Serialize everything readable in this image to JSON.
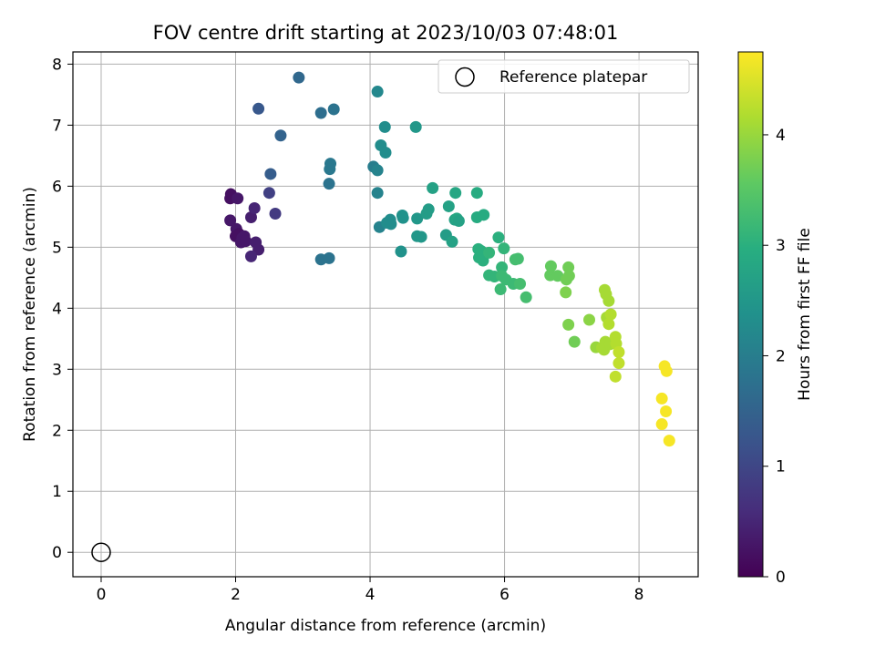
{
  "chart_data": {
    "type": "scatter",
    "title": "FOV centre drift starting at 2023/10/03 07:48:01",
    "xlabel": "Angular distance from reference (arcmin)",
    "ylabel": "Rotation from reference (arcmin)",
    "xlim": [
      -0.42,
      8.88
    ],
    "ylim": [
      -0.4,
      8.2
    ],
    "xticks": [
      0,
      2,
      4,
      6,
      8
    ],
    "yticks": [
      0,
      1,
      2,
      3,
      4,
      5,
      6,
      7,
      8
    ],
    "grid": true,
    "legend": {
      "placement": "top-right",
      "entries": [
        {
          "label": "Reference platepar",
          "marker": "open-circle"
        }
      ]
    },
    "reference_point": {
      "x": 0,
      "y": 0
    },
    "colorbar": {
      "label": "Hours from first FF file",
      "colormap": "viridis",
      "range": [
        0,
        4.75
      ],
      "ticks": [
        0,
        1,
        2,
        3,
        4
      ]
    },
    "points": [
      {
        "x": 1.93,
        "y": 5.87,
        "t": 0.2
      },
      {
        "x": 1.92,
        "y": 5.8,
        "t": 0.2
      },
      {
        "x": 2.03,
        "y": 5.8,
        "t": 0.3
      },
      {
        "x": 1.92,
        "y": 5.44,
        "t": 0.3
      },
      {
        "x": 2.01,
        "y": 5.3,
        "t": 0.3
      },
      {
        "x": 2.05,
        "y": 5.22,
        "t": 0.2
      },
      {
        "x": 2.0,
        "y": 5.18,
        "t": 0.2
      },
      {
        "x": 2.1,
        "y": 5.15,
        "t": 0.3
      },
      {
        "x": 2.13,
        "y": 5.18,
        "t": 0.3
      },
      {
        "x": 2.08,
        "y": 5.08,
        "t": 0.3
      },
      {
        "x": 2.15,
        "y": 5.1,
        "t": 0.3
      },
      {
        "x": 2.3,
        "y": 5.08,
        "t": 0.4
      },
      {
        "x": 2.34,
        "y": 4.96,
        "t": 0.4
      },
      {
        "x": 2.23,
        "y": 4.85,
        "t": 0.5
      },
      {
        "x": 2.23,
        "y": 5.49,
        "t": 0.4
      },
      {
        "x": 2.28,
        "y": 5.64,
        "t": 0.5
      },
      {
        "x": 2.5,
        "y": 5.89,
        "t": 0.9
      },
      {
        "x": 2.59,
        "y": 5.55,
        "t": 0.8
      },
      {
        "x": 2.52,
        "y": 6.2,
        "t": 1.4
      },
      {
        "x": 2.34,
        "y": 7.27,
        "t": 1.3
      },
      {
        "x": 2.67,
        "y": 6.83,
        "t": 1.5
      },
      {
        "x": 2.94,
        "y": 7.78,
        "t": 1.6
      },
      {
        "x": 3.27,
        "y": 7.2,
        "t": 1.7
      },
      {
        "x": 3.46,
        "y": 7.26,
        "t": 1.8
      },
      {
        "x": 3.41,
        "y": 6.37,
        "t": 1.9
      },
      {
        "x": 3.4,
        "y": 6.28,
        "t": 1.9
      },
      {
        "x": 3.39,
        "y": 6.04,
        "t": 1.8
      },
      {
        "x": 3.27,
        "y": 4.8,
        "t": 1.8
      },
      {
        "x": 3.39,
        "y": 4.82,
        "t": 1.8
      },
      {
        "x": 4.05,
        "y": 6.32,
        "t": 2.0
      },
      {
        "x": 4.11,
        "y": 6.26,
        "t": 2.1
      },
      {
        "x": 4.11,
        "y": 5.89,
        "t": 2.1
      },
      {
        "x": 4.11,
        "y": 7.55,
        "t": 2.2
      },
      {
        "x": 4.22,
        "y": 6.97,
        "t": 2.3
      },
      {
        "x": 4.16,
        "y": 6.67,
        "t": 2.3
      },
      {
        "x": 4.23,
        "y": 6.55,
        "t": 2.3
      },
      {
        "x": 4.14,
        "y": 5.33,
        "t": 2.1
      },
      {
        "x": 4.25,
        "y": 5.4,
        "t": 2.3
      },
      {
        "x": 4.3,
        "y": 5.45,
        "t": 2.3
      },
      {
        "x": 4.31,
        "y": 5.38,
        "t": 2.3
      },
      {
        "x": 4.48,
        "y": 5.52,
        "t": 2.4
      },
      {
        "x": 4.49,
        "y": 5.48,
        "t": 2.4
      },
      {
        "x": 4.68,
        "y": 6.97,
        "t": 2.5
      },
      {
        "x": 4.46,
        "y": 4.93,
        "t": 2.4
      },
      {
        "x": 4.7,
        "y": 5.47,
        "t": 2.5
      },
      {
        "x": 4.7,
        "y": 5.18,
        "t": 2.5
      },
      {
        "x": 4.76,
        "y": 5.17,
        "t": 2.5
      },
      {
        "x": 4.84,
        "y": 5.55,
        "t": 2.6
      },
      {
        "x": 4.87,
        "y": 5.62,
        "t": 2.6
      },
      {
        "x": 4.93,
        "y": 5.97,
        "t": 2.7
      },
      {
        "x": 5.13,
        "y": 5.2,
        "t": 2.6
      },
      {
        "x": 5.17,
        "y": 5.67,
        "t": 2.7
      },
      {
        "x": 5.22,
        "y": 5.09,
        "t": 2.7
      },
      {
        "x": 5.27,
        "y": 5.89,
        "t": 2.8
      },
      {
        "x": 5.26,
        "y": 5.45,
        "t": 2.7
      },
      {
        "x": 5.29,
        "y": 5.47,
        "t": 2.8
      },
      {
        "x": 5.32,
        "y": 5.43,
        "t": 2.7
      },
      {
        "x": 5.59,
        "y": 5.89,
        "t": 2.9
      },
      {
        "x": 5.59,
        "y": 5.49,
        "t": 2.9
      },
      {
        "x": 5.69,
        "y": 5.53,
        "t": 2.9
      },
      {
        "x": 5.61,
        "y": 4.97,
        "t": 3.0
      },
      {
        "x": 5.62,
        "y": 4.83,
        "t": 3.0
      },
      {
        "x": 5.65,
        "y": 4.94,
        "t": 3.0
      },
      {
        "x": 5.68,
        "y": 4.78,
        "t": 3.0
      },
      {
        "x": 5.77,
        "y": 4.91,
        "t": 3.1
      },
      {
        "x": 5.77,
        "y": 4.54,
        "t": 3.1
      },
      {
        "x": 5.85,
        "y": 4.52,
        "t": 3.1
      },
      {
        "x": 5.91,
        "y": 5.16,
        "t": 3.0
      },
      {
        "x": 5.99,
        "y": 4.98,
        "t": 3.1
      },
      {
        "x": 5.96,
        "y": 4.67,
        "t": 3.1
      },
      {
        "x": 5.96,
        "y": 4.53,
        "t": 3.2
      },
      {
        "x": 5.94,
        "y": 4.31,
        "t": 3.2
      },
      {
        "x": 6.02,
        "y": 4.47,
        "t": 3.2
      },
      {
        "x": 6.13,
        "y": 4.4,
        "t": 3.2
      },
      {
        "x": 6.16,
        "y": 4.8,
        "t": 3.3
      },
      {
        "x": 6.2,
        "y": 4.81,
        "t": 3.3
      },
      {
        "x": 6.23,
        "y": 4.4,
        "t": 3.3
      },
      {
        "x": 6.32,
        "y": 4.18,
        "t": 3.3
      },
      {
        "x": 6.69,
        "y": 4.69,
        "t": 3.6
      },
      {
        "x": 6.68,
        "y": 4.54,
        "t": 3.6
      },
      {
        "x": 6.79,
        "y": 4.53,
        "t": 3.6
      },
      {
        "x": 6.92,
        "y": 4.47,
        "t": 3.7
      },
      {
        "x": 6.95,
        "y": 4.67,
        "t": 3.7
      },
      {
        "x": 6.96,
        "y": 4.53,
        "t": 3.7
      },
      {
        "x": 6.91,
        "y": 4.26,
        "t": 3.8
      },
      {
        "x": 6.95,
        "y": 3.73,
        "t": 3.8
      },
      {
        "x": 7.04,
        "y": 3.45,
        "t": 3.7
      },
      {
        "x": 7.26,
        "y": 3.81,
        "t": 3.9
      },
      {
        "x": 7.36,
        "y": 3.36,
        "t": 4.0
      },
      {
        "x": 7.45,
        "y": 3.35,
        "t": 4.1
      },
      {
        "x": 7.48,
        "y": 3.32,
        "t": 4.1
      },
      {
        "x": 7.5,
        "y": 3.45,
        "t": 4.1
      },
      {
        "x": 7.57,
        "y": 3.41,
        "t": 4.1
      },
      {
        "x": 7.49,
        "y": 4.3,
        "t": 4.1
      },
      {
        "x": 7.51,
        "y": 4.23,
        "t": 4.1
      },
      {
        "x": 7.55,
        "y": 4.12,
        "t": 4.1
      },
      {
        "x": 7.52,
        "y": 3.85,
        "t": 4.1
      },
      {
        "x": 7.55,
        "y": 3.74,
        "t": 4.2
      },
      {
        "x": 7.58,
        "y": 3.9,
        "t": 4.2
      },
      {
        "x": 7.65,
        "y": 3.53,
        "t": 4.2
      },
      {
        "x": 7.66,
        "y": 3.42,
        "t": 4.2
      },
      {
        "x": 7.7,
        "y": 3.28,
        "t": 4.3
      },
      {
        "x": 7.7,
        "y": 3.1,
        "t": 4.3
      },
      {
        "x": 7.65,
        "y": 2.88,
        "t": 4.3
      },
      {
        "x": 8.38,
        "y": 3.05,
        "t": 4.7
      },
      {
        "x": 8.41,
        "y": 2.97,
        "t": 4.7
      },
      {
        "x": 8.34,
        "y": 2.52,
        "t": 4.7
      },
      {
        "x": 8.4,
        "y": 2.31,
        "t": 4.7
      },
      {
        "x": 8.34,
        "y": 2.1,
        "t": 4.7
      },
      {
        "x": 8.45,
        "y": 1.83,
        "t": 4.7
      }
    ]
  }
}
